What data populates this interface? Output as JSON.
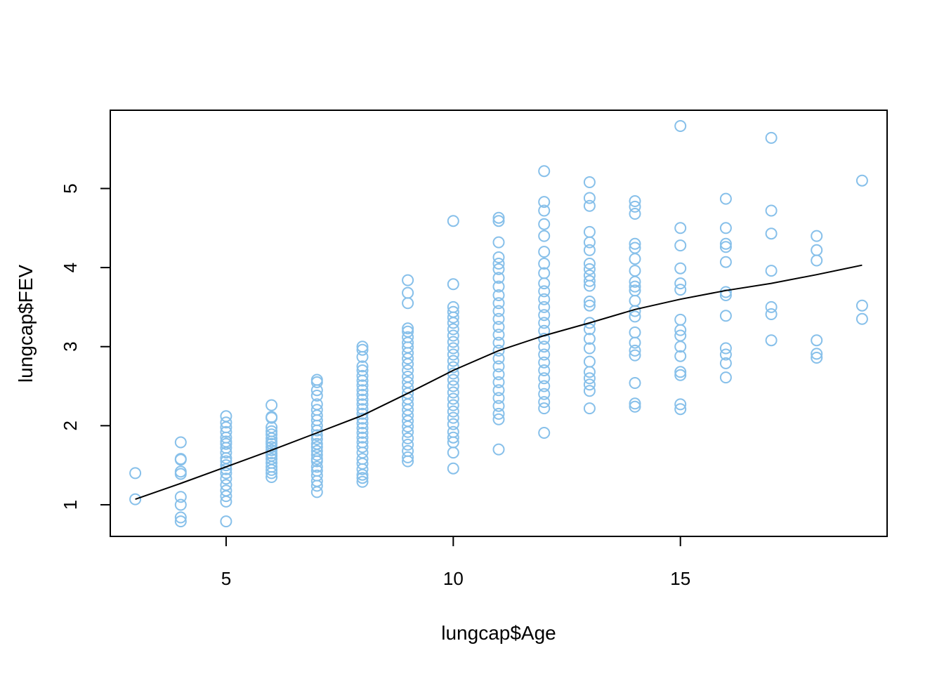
{
  "colors": {
    "points": "#87C0EA",
    "smooth_line": "#000000",
    "axes": "#000000"
  },
  "chart_data": {
    "type": "scatter",
    "title": "",
    "xlabel": "lungcap$Age",
    "ylabel": "lungcap$FEV",
    "xlim": [
      2.45,
      19.55
    ],
    "ylim": [
      0.6,
      5.99
    ],
    "xticks": [
      5,
      10,
      15
    ],
    "yticks": [
      1,
      2,
      3,
      4,
      5
    ],
    "grid": false,
    "legend": "none",
    "series": [
      {
        "marker": "open-circle",
        "points": [
          [
            3,
            1.4
          ],
          [
            3,
            1.07
          ],
          [
            4,
            1.79
          ],
          [
            4,
            1.58
          ],
          [
            4,
            1.57
          ],
          [
            4,
            1.42
          ],
          [
            4,
            1.39
          ],
          [
            4,
            1.1
          ],
          [
            4,
            1.0
          ],
          [
            4,
            0.84
          ],
          [
            4,
            0.79
          ],
          [
            5,
            2.12
          ],
          [
            5,
            2.04
          ],
          [
            5,
            1.98
          ],
          [
            5,
            1.92
          ],
          [
            5,
            1.85
          ],
          [
            5,
            1.8
          ],
          [
            5,
            1.77
          ],
          [
            5,
            1.72
          ],
          [
            5,
            1.66
          ],
          [
            5,
            1.59
          ],
          [
            5,
            1.55
          ],
          [
            5,
            1.5
          ],
          [
            5,
            1.45
          ],
          [
            5,
            1.4
          ],
          [
            5,
            1.33
          ],
          [
            5,
            1.25
          ],
          [
            5,
            1.18
          ],
          [
            5,
            1.11
          ],
          [
            5,
            1.04
          ],
          [
            5,
            0.79
          ],
          [
            6,
            2.26
          ],
          [
            6,
            2.11
          ],
          [
            6,
            2.1
          ],
          [
            6,
            1.98
          ],
          [
            6,
            1.93
          ],
          [
            6,
            1.89
          ],
          [
            6,
            1.84
          ],
          [
            6,
            1.8
          ],
          [
            6,
            1.77
          ],
          [
            6,
            1.73
          ],
          [
            6,
            1.69
          ],
          [
            6,
            1.65
          ],
          [
            6,
            1.62
          ],
          [
            6,
            1.58
          ],
          [
            6,
            1.53
          ],
          [
            6,
            1.48
          ],
          [
            6,
            1.44
          ],
          [
            6,
            1.4
          ],
          [
            6,
            1.35
          ],
          [
            7,
            2.58
          ],
          [
            7,
            2.55
          ],
          [
            7,
            2.45
          ],
          [
            7,
            2.38
          ],
          [
            7,
            2.27
          ],
          [
            7,
            2.2
          ],
          [
            7,
            2.13
          ],
          [
            7,
            2.07
          ],
          [
            7,
            2.0
          ],
          [
            7,
            1.94
          ],
          [
            7,
            1.88
          ],
          [
            7,
            1.83
          ],
          [
            7,
            1.77
          ],
          [
            7,
            1.73
          ],
          [
            7,
            1.68
          ],
          [
            7,
            1.63
          ],
          [
            7,
            1.58
          ],
          [
            7,
            1.55
          ],
          [
            7,
            1.48
          ],
          [
            7,
            1.43
          ],
          [
            7,
            1.37
          ],
          [
            7,
            1.3
          ],
          [
            7,
            1.24
          ],
          [
            7,
            1.16
          ],
          [
            8,
            3.0
          ],
          [
            8,
            2.96
          ],
          [
            8,
            2.87
          ],
          [
            8,
            2.75
          ],
          [
            8,
            2.7
          ],
          [
            8,
            2.63
          ],
          [
            8,
            2.57
          ],
          [
            8,
            2.51
          ],
          [
            8,
            2.45
          ],
          [
            8,
            2.39
          ],
          [
            8,
            2.33
          ],
          [
            8,
            2.27
          ],
          [
            8,
            2.21
          ],
          [
            8,
            2.15
          ],
          [
            8,
            2.09
          ],
          [
            8,
            2.03
          ],
          [
            8,
            1.97
          ],
          [
            8,
            1.91
          ],
          [
            8,
            1.85
          ],
          [
            8,
            1.79
          ],
          [
            8,
            1.73
          ],
          [
            8,
            1.66
          ],
          [
            8,
            1.58
          ],
          [
            8,
            1.52
          ],
          [
            8,
            1.45
          ],
          [
            8,
            1.38
          ],
          [
            8,
            1.34
          ],
          [
            8,
            1.29
          ],
          [
            9,
            3.84
          ],
          [
            9,
            3.68
          ],
          [
            9,
            3.55
          ],
          [
            9,
            3.23
          ],
          [
            9,
            3.19
          ],
          [
            9,
            3.12
          ],
          [
            9,
            3.05
          ],
          [
            9,
            2.99
          ],
          [
            9,
            2.92
          ],
          [
            9,
            2.85
          ],
          [
            9,
            2.78
          ],
          [
            9,
            2.7
          ],
          [
            9,
            2.62
          ],
          [
            9,
            2.55
          ],
          [
            9,
            2.48
          ],
          [
            9,
            2.41
          ],
          [
            9,
            2.34
          ],
          [
            9,
            2.27
          ],
          [
            9,
            2.2
          ],
          [
            9,
            2.13
          ],
          [
            9,
            2.06
          ],
          [
            9,
            1.99
          ],
          [
            9,
            1.92
          ],
          [
            9,
            1.84
          ],
          [
            9,
            1.76
          ],
          [
            9,
            1.68
          ],
          [
            9,
            1.6
          ],
          [
            9,
            1.55
          ],
          [
            10,
            4.59
          ],
          [
            10,
            3.79
          ],
          [
            10,
            3.5
          ],
          [
            10,
            3.44
          ],
          [
            10,
            3.37
          ],
          [
            10,
            3.3
          ],
          [
            10,
            3.22
          ],
          [
            10,
            3.14
          ],
          [
            10,
            3.06
          ],
          [
            10,
            2.98
          ],
          [
            10,
            2.9
          ],
          [
            10,
            2.82
          ],
          [
            10,
            2.74
          ],
          [
            10,
            2.66
          ],
          [
            10,
            2.58
          ],
          [
            10,
            2.5
          ],
          [
            10,
            2.42
          ],
          [
            10,
            2.34
          ],
          [
            10,
            2.26
          ],
          [
            10,
            2.18
          ],
          [
            10,
            2.1
          ],
          [
            10,
            2.02
          ],
          [
            10,
            1.92
          ],
          [
            10,
            1.85
          ],
          [
            10,
            1.79
          ],
          [
            10,
            1.66
          ],
          [
            10,
            1.46
          ],
          [
            11,
            4.63
          ],
          [
            11,
            4.59
          ],
          [
            11,
            4.32
          ],
          [
            11,
            4.13
          ],
          [
            11,
            4.05
          ],
          [
            11,
            3.98
          ],
          [
            11,
            3.87
          ],
          [
            11,
            3.76
          ],
          [
            11,
            3.65
          ],
          [
            11,
            3.55
          ],
          [
            11,
            3.45
          ],
          [
            11,
            3.35
          ],
          [
            11,
            3.25
          ],
          [
            11,
            3.15
          ],
          [
            11,
            3.05
          ],
          [
            11,
            2.95
          ],
          [
            11,
            2.85
          ],
          [
            11,
            2.75
          ],
          [
            11,
            2.65
          ],
          [
            11,
            2.55
          ],
          [
            11,
            2.45
          ],
          [
            11,
            2.35
          ],
          [
            11,
            2.25
          ],
          [
            11,
            2.15
          ],
          [
            11,
            2.08
          ],
          [
            11,
            1.7
          ],
          [
            12,
            5.22
          ],
          [
            12,
            4.83
          ],
          [
            12,
            4.72
          ],
          [
            12,
            4.55
          ],
          [
            12,
            4.4
          ],
          [
            12,
            4.2
          ],
          [
            12,
            4.05
          ],
          [
            12,
            3.93
          ],
          [
            12,
            3.8
          ],
          [
            12,
            3.7
          ],
          [
            12,
            3.6
          ],
          [
            12,
            3.5
          ],
          [
            12,
            3.4
          ],
          [
            12,
            3.3
          ],
          [
            12,
            3.2
          ],
          [
            12,
            3.1
          ],
          [
            12,
            3.0
          ],
          [
            12,
            2.9
          ],
          [
            12,
            2.8
          ],
          [
            12,
            2.7
          ],
          [
            12,
            2.6
          ],
          [
            12,
            2.5
          ],
          [
            12,
            2.4
          ],
          [
            12,
            2.3
          ],
          [
            12,
            2.22
          ],
          [
            12,
            1.91
          ],
          [
            13,
            5.08
          ],
          [
            13,
            4.88
          ],
          [
            13,
            4.78
          ],
          [
            13,
            4.45
          ],
          [
            13,
            4.32
          ],
          [
            13,
            4.22
          ],
          [
            13,
            4.05
          ],
          [
            13,
            3.98
          ],
          [
            13,
            3.9
          ],
          [
            13,
            3.83
          ],
          [
            13,
            3.77
          ],
          [
            13,
            3.57
          ],
          [
            13,
            3.52
          ],
          [
            13,
            3.3
          ],
          [
            13,
            3.22
          ],
          [
            13,
            3.1
          ],
          [
            13,
            2.98
          ],
          [
            13,
            2.81
          ],
          [
            13,
            2.68
          ],
          [
            13,
            2.6
          ],
          [
            13,
            2.52
          ],
          [
            13,
            2.44
          ],
          [
            13,
            2.22
          ],
          [
            14,
            4.84
          ],
          [
            14,
            4.77
          ],
          [
            14,
            4.68
          ],
          [
            14,
            4.3
          ],
          [
            14,
            4.25
          ],
          [
            14,
            4.11
          ],
          [
            14,
            3.96
          ],
          [
            14,
            3.82
          ],
          [
            14,
            3.76
          ],
          [
            14,
            3.71
          ],
          [
            14,
            3.58
          ],
          [
            14,
            3.45
          ],
          [
            14,
            3.38
          ],
          [
            14,
            3.18
          ],
          [
            14,
            3.05
          ],
          [
            14,
            2.95
          ],
          [
            14,
            2.89
          ],
          [
            14,
            2.54
          ],
          [
            14,
            2.28
          ],
          [
            14,
            2.24
          ],
          [
            15,
            5.79
          ],
          [
            15,
            4.5
          ],
          [
            15,
            4.28
          ],
          [
            15,
            3.99
          ],
          [
            15,
            3.8
          ],
          [
            15,
            3.72
          ],
          [
            15,
            3.34
          ],
          [
            15,
            3.21
          ],
          [
            15,
            3.14
          ],
          [
            15,
            3.0
          ],
          [
            15,
            2.88
          ],
          [
            15,
            2.68
          ],
          [
            15,
            2.64
          ],
          [
            15,
            2.27
          ],
          [
            15,
            2.21
          ],
          [
            16,
            4.87
          ],
          [
            16,
            4.5
          ],
          [
            16,
            4.3
          ],
          [
            16,
            4.26
          ],
          [
            16,
            4.07
          ],
          [
            16,
            3.69
          ],
          [
            16,
            3.65
          ],
          [
            16,
            3.39
          ],
          [
            16,
            2.98
          ],
          [
            16,
            2.9
          ],
          [
            16,
            2.79
          ],
          [
            16,
            2.61
          ],
          [
            17,
            5.64
          ],
          [
            17,
            4.72
          ],
          [
            17,
            4.43
          ],
          [
            17,
            3.96
          ],
          [
            17,
            3.5
          ],
          [
            17,
            3.41
          ],
          [
            17,
            3.08
          ],
          [
            18,
            4.4
          ],
          [
            18,
            4.22
          ],
          [
            18,
            4.09
          ],
          [
            18,
            3.08
          ],
          [
            18,
            2.91
          ],
          [
            18,
            2.86
          ],
          [
            19,
            5.1
          ],
          [
            19,
            3.52
          ],
          [
            19,
            3.35
          ]
        ]
      },
      {
        "marker": "line",
        "points": [
          [
            3,
            1.07
          ],
          [
            4,
            1.27
          ],
          [
            5,
            1.48
          ],
          [
            6,
            1.69
          ],
          [
            7,
            1.91
          ],
          [
            8,
            2.13
          ],
          [
            9,
            2.41
          ],
          [
            10,
            2.7
          ],
          [
            11,
            2.95
          ],
          [
            12,
            3.14
          ],
          [
            13,
            3.3
          ],
          [
            14,
            3.47
          ],
          [
            15,
            3.6
          ],
          [
            16,
            3.71
          ],
          [
            17,
            3.8
          ],
          [
            18,
            3.91
          ],
          [
            19,
            4.03
          ]
        ]
      }
    ]
  }
}
